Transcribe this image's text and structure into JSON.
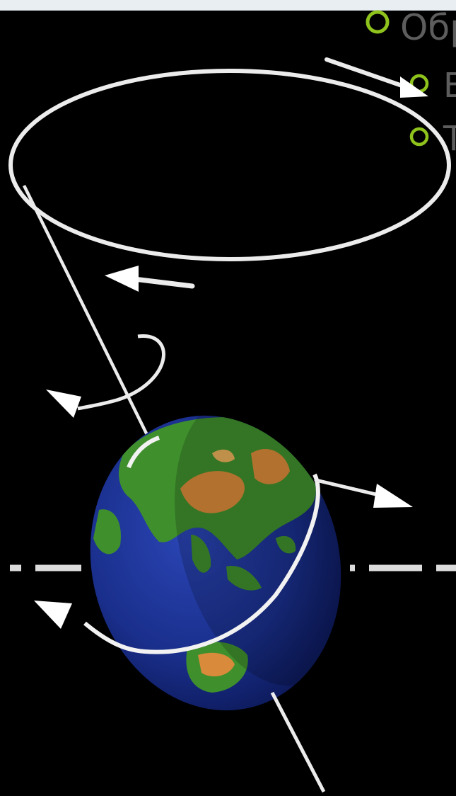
{
  "slide_bullets": [
    {
      "text": "Обр"
    },
    {
      "text": "В"
    },
    {
      "text": "Т"
    }
  ],
  "colors": {
    "background": "#000000",
    "bullet_ring": "#8ec21c",
    "bullet_text": "#5d5d5d",
    "lines": "#ffffff",
    "ocean": "#1a2f8c",
    "land_green": "#3f8f2d",
    "land_orange": "#d98a3a"
  },
  "icons": [
    "bullet-ring-icon",
    "arrow-icon"
  ]
}
